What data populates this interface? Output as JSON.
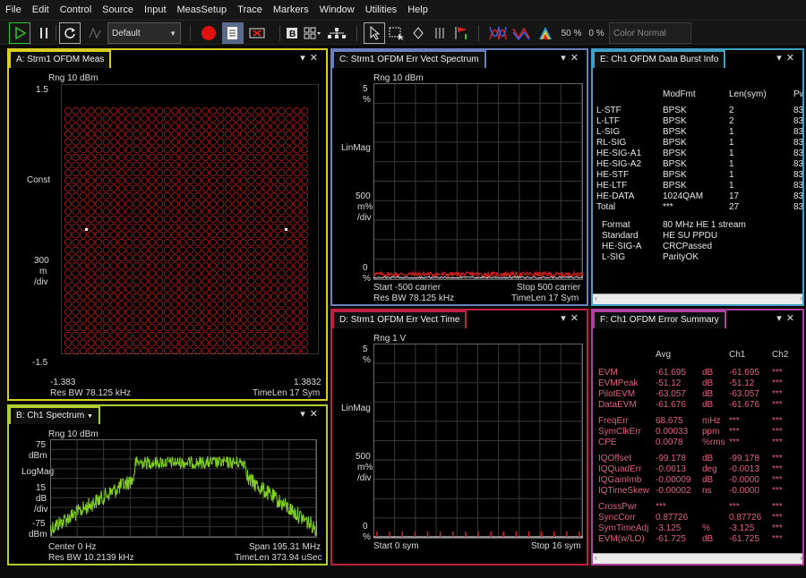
{
  "menu": [
    "File",
    "Edit",
    "Control",
    "Source",
    "Input",
    "MeasSetup",
    "Trace",
    "Markers",
    "Window",
    "Utilities",
    "Help"
  ],
  "toolbar": {
    "preset": "Default",
    "pct1": "50 %",
    "pct2": "0 %",
    "color_mode": "Color Normal"
  },
  "colors": {
    "accentA": "#d8d020",
    "accentB": "#b0d030",
    "accentC": "#6a7fc0",
    "accentD": "#c02040",
    "accentE": "#40a0c8",
    "accentF": "#b040a0",
    "trace_red": "#d02020",
    "trace_green": "#80d020",
    "record": "#e01010",
    "play": "#30c030"
  },
  "panelA": {
    "title": "A: Strm1 OFDM Meas",
    "rng": "Rng 10 dBm",
    "ytop": "1.5",
    "ybot": "-1.5",
    "ylabel1": "Const",
    "ylabel2": "300",
    "ylabel3": "m",
    "ylabel4": "/div",
    "xleft": "-1.383",
    "xright": "1.3832",
    "foot_left": "Res BW 78.125 kHz",
    "foot_right": "TimeLen 17  Sym"
  },
  "panelB": {
    "title": "B: Ch1 Spectrum",
    "rng": "Rng 10 dBm",
    "y1": "75",
    "y1u": "dBm",
    "ymid": "LogMag",
    "y2": "15",
    "y2u": "dB",
    "y2d": "/div",
    "y3": "-75",
    "y3u": "dBm",
    "foot_left1": "Center 0  Hz",
    "foot_right1": "Span 195.31 MHz",
    "foot_left2": "Res BW 10.2139 kHz",
    "foot_right2": "TimeLen 373.94 uSec"
  },
  "panelC": {
    "title": "C: Strm1 OFDM Err Vect Spectrum",
    "rng": "Rng 10 dBm",
    "ytop": "5",
    "ytopu": "%",
    "ymid": "LinMag",
    "y2": "500",
    "y2a": "m%",
    "y2b": "/div",
    "ybot": "0",
    "ybotu": "%",
    "foot_left1": "Start -500  carrier",
    "foot_right1": "Stop 500  carrier",
    "foot_left2": "Res BW 78.125 kHz",
    "foot_right2": "TimeLen 17  Sym"
  },
  "panelD": {
    "title": "D: Strm1 OFDM Err Vect Time",
    "rng": "Rng 1  V",
    "ytop": "5",
    "ytopu": "%",
    "ymid": "LinMag",
    "y2": "500",
    "y2a": "m%",
    "y2b": "/div",
    "ybot": "0",
    "ybotu": "%",
    "foot_left": "Start 0  sym",
    "foot_right": "Stop 16  sym"
  },
  "panelE": {
    "title": "E: Ch1 OFDM Data Burst Info",
    "headers": [
      "ModFmt",
      "Len(sym)",
      "Pw"
    ],
    "rows": [
      [
        "L-STF",
        "BPSK",
        "2",
        "83"
      ],
      [
        "L-LTF",
        "BPSK",
        "2",
        "83"
      ],
      [
        "L-SIG",
        "BPSK",
        "1",
        "83"
      ],
      [
        "RL-SIG",
        "BPSK",
        "1",
        "83"
      ],
      [
        "HE-SIG-A1",
        "BPSK",
        "1",
        "83"
      ],
      [
        "HE-SIG-A2",
        "BPSK",
        "1",
        "83"
      ],
      [
        "HE-STF",
        "BPSK",
        "1",
        "83"
      ],
      [
        "HE-LTF",
        "BPSK",
        "1",
        "83"
      ],
      [
        "HE-DATA",
        "1024QAM",
        "17",
        "83"
      ],
      [
        "Total",
        "***",
        "27",
        "83"
      ]
    ],
    "info": [
      [
        "Format",
        "80  MHz HE 1   stream"
      ],
      [
        "Standard",
        "HE SU PPDU"
      ],
      [
        "HE-SIG-A",
        "CRCPassed"
      ],
      [
        "L-SIG",
        "ParityOK"
      ]
    ]
  },
  "panelF": {
    "title": "F: Ch1 OFDM Error Summary",
    "headers": [
      "Avg",
      "Ch1",
      "Ch2"
    ],
    "groups": [
      [
        [
          "EVM",
          "-61.695",
          "dB",
          "-61.695",
          "***"
        ],
        [
          "EVMPeak",
          "-51.12",
          "dB",
          "-51.12",
          "***"
        ],
        [
          "PilotEVM",
          "-63.057",
          "dB",
          "-63.057",
          "***"
        ],
        [
          "DataEVM",
          "-61.676",
          "dB",
          "-61.676",
          "***"
        ]
      ],
      [
        [
          "FreqErr",
          "68.675",
          "mHz",
          "***",
          "***"
        ],
        [
          "SymClkErr",
          "0.00033",
          "ppm",
          "***",
          "***"
        ],
        [
          "CPE",
          "0.0078",
          "%rms",
          "***",
          "***"
        ]
      ],
      [
        [
          "IQOffset",
          "-99.178",
          "dB",
          "-99.178",
          "***"
        ],
        [
          "IQQuadErr",
          "-0.0013",
          "deg",
          "-0.0013",
          "***"
        ],
        [
          "IQGainImb",
          "-0.00009",
          "dB",
          "-0.0000",
          "***"
        ],
        [
          "IQTimeSkew",
          "-0.00002",
          "ns",
          "-0.0000",
          "***"
        ]
      ],
      [
        [
          "CrossPwr",
          "***",
          "",
          "***",
          "***"
        ],
        [
          "SyncCorr",
          "0.87726",
          "",
          "0.87726",
          "***"
        ],
        [
          "SymTimeAdj",
          "-3.125",
          "%",
          "-3.125",
          "***"
        ],
        [
          "EVM(w/LO)",
          "-61.725",
          "dB",
          "-61.725",
          "***"
        ]
      ]
    ]
  }
}
